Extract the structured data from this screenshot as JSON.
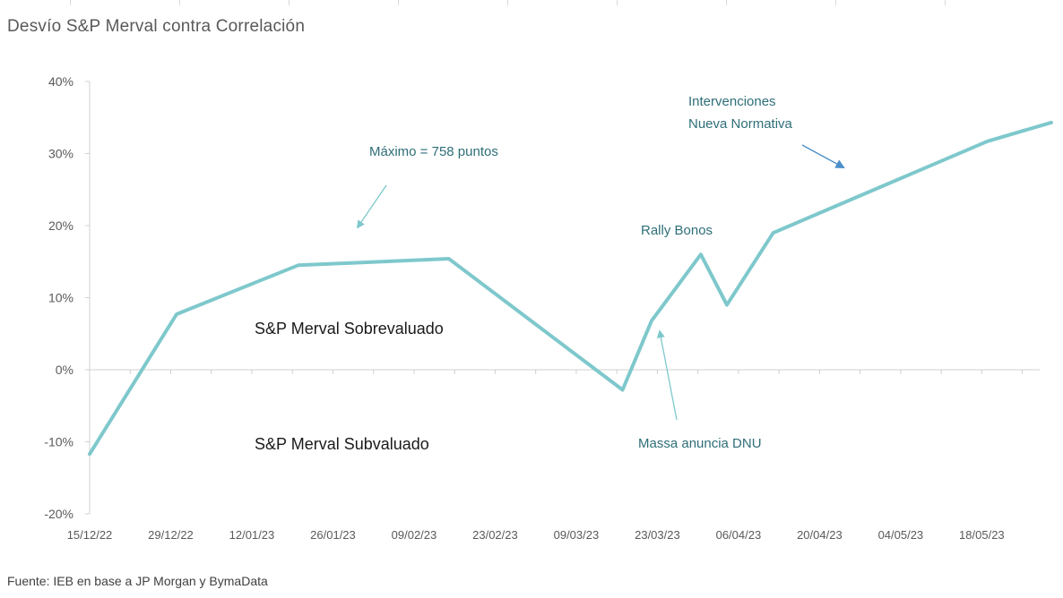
{
  "title": "Desvío S&P Merval contra Correlación",
  "source": "Fuente: IEB en base a JP Morgan y BymaData",
  "chart_data": {
    "type": "line",
    "title": "Desvío S&P Merval contra Correlación",
    "xlabel": "",
    "ylabel": "",
    "ylim": [
      -20,
      40
    ],
    "yticks": [
      -20,
      -10,
      0,
      10,
      20,
      30,
      40
    ],
    "ytick_labels": [
      "-20%",
      "-10%",
      "0%",
      "10%",
      "20%",
      "30%",
      "40%"
    ],
    "xlim": [
      0,
      164
    ],
    "x_ticks": [
      {
        "label": "15/12/22",
        "x": 0
      },
      {
        "label": "29/12/22",
        "x": 14
      },
      {
        "label": "12/01/23",
        "x": 28
      },
      {
        "label": "26/01/23",
        "x": 42
      },
      {
        "label": "09/02/23",
        "x": 56
      },
      {
        "label": "23/02/23",
        "x": 70
      },
      {
        "label": "09/03/23",
        "x": 84
      },
      {
        "label": "23/03/23",
        "x": 98
      },
      {
        "label": "06/04/23",
        "x": 112
      },
      {
        "label": "20/04/23",
        "x": 126
      },
      {
        "label": "04/05/23",
        "x": 140
      },
      {
        "label": "18/05/23",
        "x": 154
      }
    ],
    "series": [
      {
        "name": "Desvío S&P Merval",
        "color": "#7ec8cc",
        "points": [
          {
            "x": 0,
            "y": -11.7
          },
          {
            "x": 15,
            "y": 7.7
          },
          {
            "x": 36,
            "y": 14.5
          },
          {
            "x": 62,
            "y": 15.4
          },
          {
            "x": 92,
            "y": -2.8
          },
          {
            "x": 97,
            "y": 6.8
          },
          {
            "x": 105.5,
            "y": 16.0
          },
          {
            "x": 110,
            "y": 9.0
          },
          {
            "x": 118,
            "y": 19.0
          },
          {
            "x": 155,
            "y": 31.7
          },
          {
            "x": 166,
            "y": 34.3
          }
        ]
      }
    ],
    "annotations": [
      {
        "text": "Máximo = 758 puntos",
        "color": "#2e6e78"
      },
      {
        "text": "Rally Bonos",
        "color": "#2e6e78"
      },
      {
        "text": "Intervenciones",
        "color": "#2e6e78"
      },
      {
        "text": "Nueva Normativa",
        "color": "#2e6e78"
      },
      {
        "text": "Massa anuncia DNU",
        "color": "#2e6e78"
      },
      {
        "text": "S&P Merval Sobrevaluado",
        "color": "#1a1a1a"
      },
      {
        "text": "S&P Merval Subvaluado",
        "color": "#1a1a1a"
      }
    ],
    "grid": false
  }
}
